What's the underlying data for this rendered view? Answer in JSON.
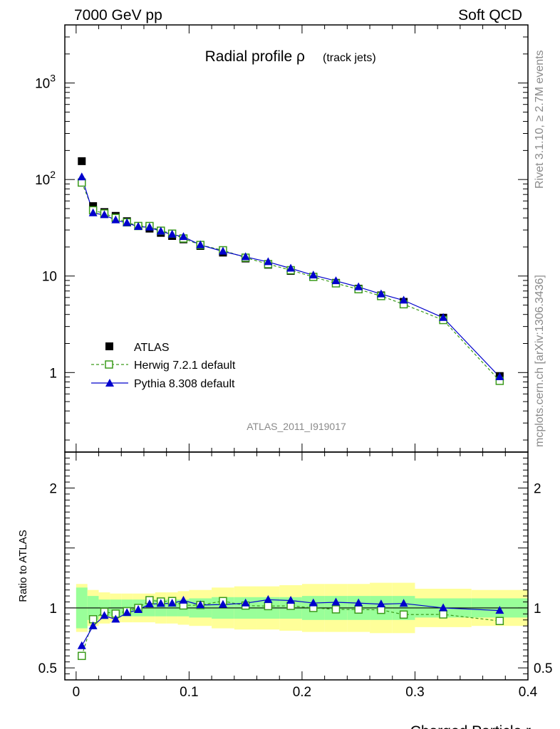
{
  "header": {
    "left": "7000 GeV pp",
    "right": "Soft QCD"
  },
  "side_text": {
    "rivet": "Rivet 3.1.10, ≥ 2.7M events",
    "mcplots": "mcplots.cern.ch [arXiv:1306.3436]"
  },
  "chart_data": {
    "type": "line",
    "title": "Radial profile ρ",
    "title_suffix": "(track jets)",
    "analysis_id": "ATLAS_2011_I919017",
    "xlabel": "Charged Particle r",
    "ratio_ylabel": "Ratio to ATLAS",
    "xlim": [
      -0.01,
      0.4
    ],
    "ylim_main": [
      0.15,
      4000
    ],
    "ylim_ratio": [
      0.4,
      2.3
    ],
    "y_scale_main": "log",
    "x_ticks": [
      "0",
      "0.1",
      "0.2",
      "0.3",
      "0.4"
    ],
    "y_ticks_main": [
      "1",
      "10",
      "10^2",
      "10^3"
    ],
    "y_ticks_ratio": [
      "0.5",
      "1",
      "2"
    ],
    "legend_position": "lower-left",
    "x": [
      0.005,
      0.015,
      0.025,
      0.035,
      0.045,
      0.055,
      0.065,
      0.075,
      0.085,
      0.095,
      0.11,
      0.13,
      0.15,
      0.17,
      0.19,
      0.21,
      0.23,
      0.25,
      0.27,
      0.29,
      0.325,
      0.375
    ],
    "bin_edges": [
      0,
      0.01,
      0.02,
      0.03,
      0.04,
      0.05,
      0.06,
      0.07,
      0.08,
      0.09,
      0.1,
      0.12,
      0.14,
      0.16,
      0.18,
      0.2,
      0.22,
      0.24,
      0.26,
      0.28,
      0.3,
      0.35,
      0.4
    ],
    "band_inner": [
      0.17,
      0.1,
      0.07,
      0.07,
      0.07,
      0.07,
      0.07,
      0.07,
      0.07,
      0.07,
      0.08,
      0.09,
      0.09,
      0.09,
      0.09,
      0.1,
      0.1,
      0.1,
      0.1,
      0.1,
      0.08,
      0.08
    ],
    "band_outer": [
      0.2,
      0.15,
      0.13,
      0.12,
      0.12,
      0.12,
      0.12,
      0.13,
      0.13,
      0.14,
      0.15,
      0.17,
      0.18,
      0.18,
      0.19,
      0.2,
      0.2,
      0.2,
      0.21,
      0.21,
      0.16,
      0.15
    ],
    "series": [
      {
        "name": "ATLAS",
        "color": "#000000",
        "marker": "filled-square",
        "values": [
          155,
          53,
          46,
          42,
          37,
          33,
          31,
          28,
          26,
          24,
          20.5,
          17.5,
          15.2,
          13.1,
          11.3,
          9.8,
          8.5,
          7.4,
          6.3,
          5.4,
          3.7,
          0.92
        ]
      },
      {
        "name": "Herwig 7.2.1 default",
        "color": "#3a9a1a",
        "marker": "open-square",
        "dashed": true,
        "values": [
          93,
          48,
          44.5,
          40,
          36,
          33,
          33,
          29.5,
          27.5,
          24.5,
          21,
          18.5,
          15.5,
          13.3,
          11.5,
          9.8,
          8.4,
          7.3,
          6.2,
          5.1,
          3.5,
          0.82
        ]
      },
      {
        "name": "Pythia 8.308 default",
        "color": "#0000cc",
        "marker": "filled-triangle",
        "values": [
          106,
          45,
          43,
          38,
          35.5,
          32.5,
          32,
          29,
          27,
          25.5,
          21,
          18,
          15.8,
          14,
          12,
          10.2,
          8.9,
          7.7,
          6.5,
          5.6,
          3.7,
          0.9
        ]
      }
    ]
  }
}
